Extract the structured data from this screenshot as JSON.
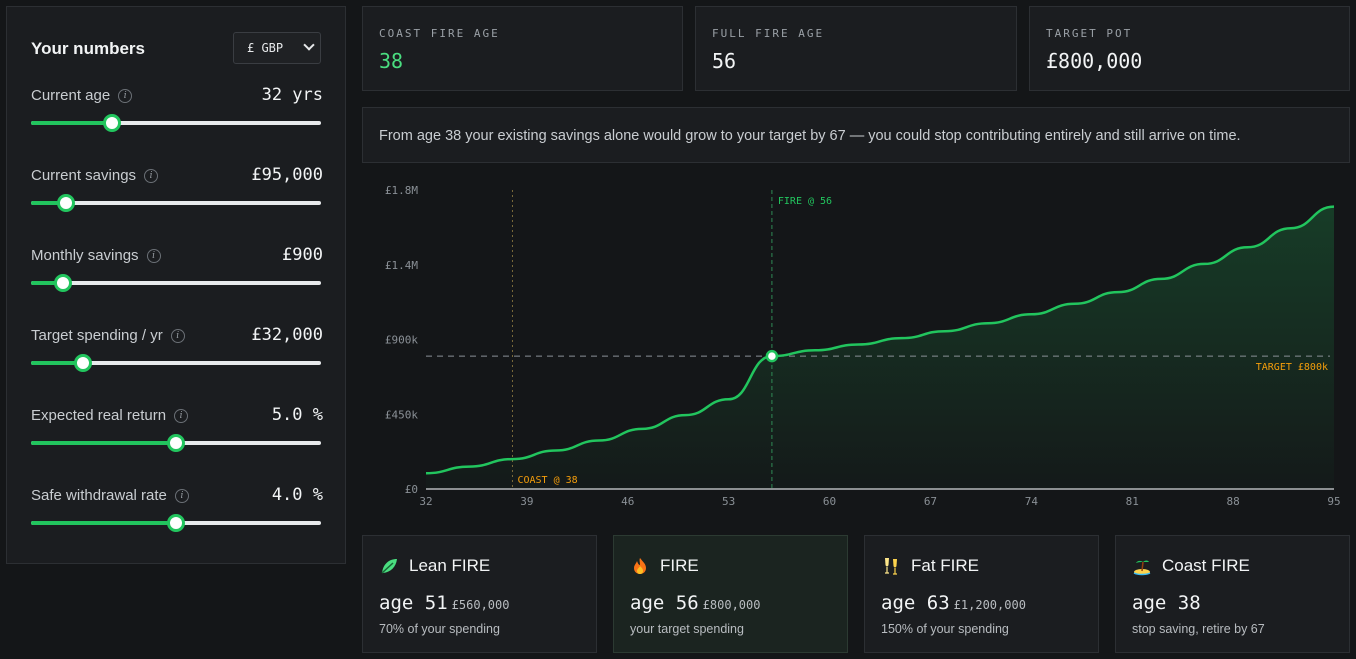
{
  "sidebar": {
    "title": "Your numbers",
    "currency": "£ GBP",
    "fields": [
      {
        "label": "Current age",
        "value": "32 yrs",
        "fraction": 0.28
      },
      {
        "label": "Current savings",
        "value": "£95,000",
        "fraction": 0.12
      },
      {
        "label": "Monthly savings",
        "value": "£900",
        "fraction": 0.11
      },
      {
        "label": "Target spending / yr",
        "value": "£32,000",
        "fraction": 0.18
      },
      {
        "label": "Expected real return",
        "value": "5.0 %",
        "fraction": 0.5
      },
      {
        "label": "Safe withdrawal rate",
        "value": "4.0 %",
        "fraction": 0.5
      }
    ],
    "info_glyph": "i"
  },
  "stats": [
    {
      "label": "COAST FIRE AGE",
      "value": "38"
    },
    {
      "label": "FULL FIRE AGE",
      "value": "56"
    },
    {
      "label": "TARGET POT",
      "value": "£800,000"
    }
  ],
  "note": "From age 38 your existing savings alone would grow to your target by 67 — you could stop contributing entirely and still arrive on time.",
  "chart_data": {
    "type": "line",
    "x": [
      32,
      35,
      38,
      41,
      44,
      47,
      50,
      53,
      56,
      59,
      62,
      65,
      68,
      71,
      74,
      77,
      80,
      83,
      86,
      89,
      92,
      95
    ],
    "series": [
      {
        "values": [
          95000,
          135000,
          180000,
          232000,
          292000,
          362000,
          445000,
          540000,
          800000,
          835000,
          870000,
          908000,
          950000,
          998000,
          1052000,
          1115000,
          1185000,
          1265000,
          1355000,
          1455000,
          1570000,
          1700000
        ]
      }
    ],
    "ylim": [
      0,
      1800000
    ],
    "y_ticks": [
      "£1.8M",
      "£1.4M",
      "£900k",
      "£450k",
      "£0"
    ],
    "y_tick_values": [
      1800000,
      1350000,
      900000,
      450000,
      0
    ],
    "x_ticks": [
      "32",
      "39",
      "46",
      "53",
      "60",
      "67",
      "74",
      "81",
      "88",
      "95"
    ],
    "x_tick_values": [
      32,
      39,
      46,
      53,
      60,
      67,
      74,
      81,
      88,
      95
    ],
    "target_value": 800000,
    "target_label": "TARGET £800k",
    "coast_age": 38,
    "coast_label": "COAST @ 38",
    "fire_age": 56,
    "fire_label": "FIRE @ 56",
    "colors": {
      "line": "#22c55e",
      "target": "#f59e0b",
      "coast": "#f59e0b",
      "fire": "#22c55e"
    }
  },
  "cards": [
    {
      "icon": "leaf-icon",
      "title": "Lean FIRE",
      "age_word": "age",
      "age": "51",
      "amount": "£560,000",
      "sub": "70% of your spending"
    },
    {
      "icon": "flame-icon",
      "title": "FIRE",
      "age_word": "age",
      "age": "56",
      "amount": "£800,000",
      "sub": "your target spending"
    },
    {
      "icon": "champagne-icon",
      "title": "Fat FIRE",
      "age_word": "age",
      "age": "63",
      "amount": "£1,200,000",
      "sub": "150% of your spending"
    },
    {
      "icon": "island-icon",
      "title": "Coast FIRE",
      "age_word": "age",
      "age": "38",
      "amount": "",
      "sub": "stop saving, retire by 67"
    }
  ]
}
